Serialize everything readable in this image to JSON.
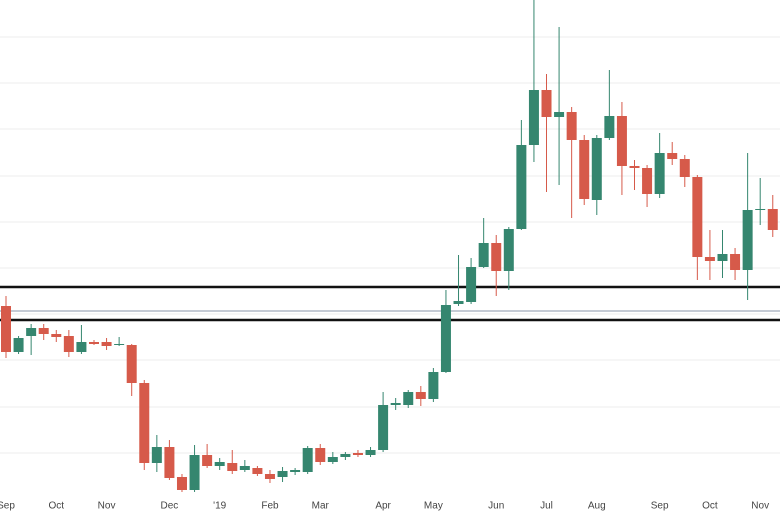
{
  "chart_data": {
    "type": "candlestick",
    "categories": [
      "Sep",
      null,
      null,
      null,
      "Oct",
      null,
      null,
      null,
      "Nov",
      null,
      null,
      null,
      null,
      "Dec",
      null,
      null,
      null,
      "'19",
      null,
      null,
      null,
      "Feb",
      null,
      null,
      null,
      "Mar",
      null,
      null,
      null,
      null,
      "Apr",
      null,
      null,
      null,
      "May",
      null,
      null,
      null,
      null,
      "Jun",
      null,
      null,
      null,
      "Jul",
      null,
      null,
      null,
      "Aug",
      null,
      null,
      null,
      null,
      "Sep",
      null,
      null,
      null,
      "Oct",
      null,
      null,
      null,
      "Nov",
      null
    ],
    "open": [
      194,
      148,
      164,
      172,
      166,
      164,
      148,
      158,
      158,
      155,
      155,
      117,
      37,
      53,
      23,
      10,
      45,
      34,
      37,
      30,
      32,
      26,
      23,
      28,
      28,
      52,
      38,
      43,
      47,
      45,
      50,
      95,
      95,
      108,
      101,
      128,
      196,
      198,
      233,
      257,
      229,
      271,
      355,
      410,
      383,
      388,
      360,
      300,
      362,
      384,
      334,
      332,
      306,
      347,
      341,
      323,
      243,
      239,
      246,
      230,
      290,
      291
    ],
    "high": [
      204,
      164,
      176,
      176,
      170,
      170,
      175,
      160,
      162,
      163,
      156,
      120,
      65,
      60,
      26,
      55,
      56,
      42,
      50,
      40,
      34,
      30,
      33,
      32,
      54,
      56,
      48,
      48,
      50,
      53,
      108,
      102,
      110,
      114,
      132,
      210,
      245,
      242,
      282,
      265,
      273,
      380,
      500,
      426,
      473,
      393,
      365,
      365,
      430,
      398,
      340,
      335,
      367,
      358,
      345,
      325,
      270,
      270,
      252,
      347,
      322,
      305
    ],
    "low": [
      142,
      146,
      145,
      160,
      158,
      143,
      146,
      155,
      150,
      154,
      104,
      30,
      28,
      20,
      8,
      8,
      32,
      30,
      26,
      28,
      24,
      17,
      18,
      25,
      26,
      35,
      36,
      40,
      43,
      43,
      48,
      90,
      92,
      94,
      98,
      127,
      194,
      196,
      232,
      204,
      210,
      270,
      338,
      308,
      315,
      282,
      295,
      285,
      360,
      305,
      310,
      293,
      302,
      335,
      313,
      220,
      220,
      222,
      220,
      200,
      275,
      263
    ],
    "close": [
      148,
      162,
      172,
      166,
      163,
      148,
      158,
      156,
      154,
      156,
      117,
      37,
      53,
      22,
      10,
      45,
      34,
      38,
      29,
      34,
      26,
      21,
      29,
      30,
      52,
      38,
      43,
      46,
      45,
      50,
      95,
      97,
      108,
      101,
      128,
      195,
      199,
      233,
      257,
      229,
      271,
      355,
      410,
      383,
      388,
      360,
      301,
      362,
      384,
      334,
      332,
      306,
      347,
      341,
      323,
      243,
      239,
      246,
      230,
      290,
      291,
      270
    ],
    "up_color": "#35866f",
    "down_color": "#d65a4a",
    "ylim": [
      0,
      500
    ],
    "gridlines": [
      463,
      417,
      371,
      324,
      278,
      232,
      186,
      140,
      93,
      47
    ],
    "grid": true,
    "hlines": [
      {
        "value": 213,
        "color": "#111111",
        "width": 2.5
      },
      {
        "value": 189,
        "color": "#8a96a8",
        "width": 1
      },
      {
        "value": 180,
        "color": "#111111",
        "width": 2.5
      }
    ]
  }
}
